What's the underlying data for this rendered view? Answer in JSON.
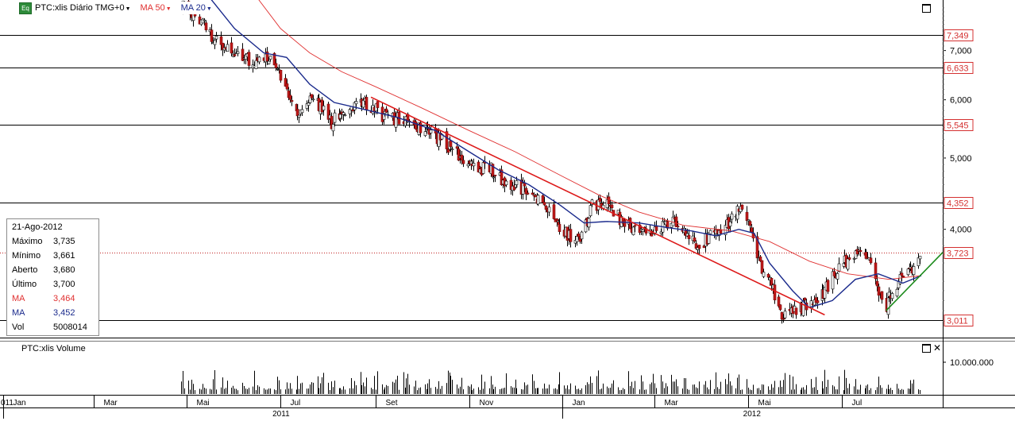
{
  "header": {
    "eq_badge": "Eq",
    "symbol_label": "PTC:xlis Diário TMG+0",
    "ma1_label": "MA 50",
    "ma2_label": "MA 20",
    "caret": "▼",
    "ma1_color": "#e03030",
    "ma2_color": "#1a2a8c"
  },
  "info_panel": {
    "date": "21-Ago-2012",
    "rows": [
      {
        "key": "Máximo",
        "value": "3,735",
        "color": "#000000"
      },
      {
        "key": "Mínimo",
        "value": "3,661",
        "color": "#000000"
      },
      {
        "key": "Aberto",
        "value": "3,680",
        "color": "#000000"
      },
      {
        "key": "Último",
        "value": "3,700",
        "color": "#000000"
      },
      {
        "key": "MA",
        "value": "3,464",
        "color": "#e03030"
      },
      {
        "key": "MA",
        "value": "3,452",
        "color": "#1a2a8c"
      },
      {
        "key": "Vol",
        "value": "5008014",
        "color": "#000000"
      }
    ]
  },
  "volume_panel": {
    "label": "PTC:xlis Volume",
    "close_icon": "✕"
  },
  "chart_data": {
    "type": "candlestick",
    "scale": "log",
    "ylim": [
      2.85,
      8.2
    ],
    "x_range": [
      "2010-12-30",
      "2012-09-05"
    ],
    "yticks": [
      {
        "value": 7.0,
        "label": "7,000"
      },
      {
        "value": 6.0,
        "label": "6,000"
      },
      {
        "value": 5.0,
        "label": "5,000"
      },
      {
        "value": 4.0,
        "label": "4,000"
      }
    ],
    "level_lines": [
      {
        "value": 7.349,
        "label": "7,349"
      },
      {
        "value": 6.633,
        "label": "6,633"
      },
      {
        "value": 5.545,
        "label": "5,545"
      },
      {
        "value": 4.352,
        "label": "4,352"
      },
      {
        "value": 3.011,
        "label": "3,011"
      }
    ],
    "last_price": {
      "value": 3.723,
      "label": "3,723"
    },
    "months": [
      {
        "date": "2011-01-01",
        "label": "Jan"
      },
      {
        "date": "2011-03-01",
        "label": "Mar"
      },
      {
        "date": "2011-05-01",
        "label": "Mai"
      },
      {
        "date": "2011-07-01",
        "label": "Jul"
      },
      {
        "date": "2011-09-01",
        "label": "Set"
      },
      {
        "date": "2011-11-01",
        "label": "Nov"
      },
      {
        "date": "2012-01-01",
        "label": "Jan"
      },
      {
        "date": "2012-03-01",
        "label": "Mar"
      },
      {
        "date": "2012-05-01",
        "label": "Mai"
      },
      {
        "date": "2012-07-01",
        "label": "Jul"
      }
    ],
    "years": [
      {
        "start": "2011-01-01",
        "end": "2011-12-31",
        "label": "2011"
      },
      {
        "start": "2012-01-01",
        "end": "2012-09-05",
        "label": "2012"
      }
    ],
    "edge_label": "011",
    "close_path": [
      [
        "2011-04-27",
        8.1
      ],
      [
        "2011-05-05",
        7.9
      ],
      [
        "2011-05-12",
        7.6
      ],
      [
        "2011-05-20",
        7.2
      ],
      [
        "2011-05-31",
        6.9
      ],
      [
        "2011-06-08",
        6.85
      ],
      [
        "2011-06-16",
        6.75
      ],
      [
        "2011-06-24",
        6.95
      ],
      [
        "2011-07-01",
        6.4
      ],
      [
        "2011-07-06",
        6.0
      ],
      [
        "2011-07-11",
        5.78
      ],
      [
        "2011-07-18",
        6.0
      ],
      [
        "2011-07-26",
        5.9
      ],
      [
        "2011-08-03",
        5.6
      ],
      [
        "2011-08-10",
        5.75
      ],
      [
        "2011-08-22",
        5.95
      ],
      [
        "2011-09-01",
        5.8
      ],
      [
        "2011-09-09",
        5.65
      ],
      [
        "2011-09-21",
        5.7
      ],
      [
        "2011-10-03",
        5.45
      ],
      [
        "2011-10-14",
        5.3
      ],
      [
        "2011-10-26",
        5.0
      ],
      [
        "2011-11-03",
        4.85
      ],
      [
        "2011-11-14",
        4.85
      ],
      [
        "2011-11-24",
        4.6
      ],
      [
        "2011-12-05",
        4.55
      ],
      [
        "2011-12-15",
        4.42
      ],
      [
        "2011-12-24",
        4.25
      ],
      [
        "2011-12-30",
        4.05
      ],
      [
        "2012-01-06",
        3.9
      ],
      [
        "2012-01-13",
        3.92
      ],
      [
        "2012-01-20",
        4.3
      ],
      [
        "2012-01-30",
        4.35
      ],
      [
        "2012-02-08",
        4.1
      ],
      [
        "2012-02-17",
        4.0
      ],
      [
        "2012-02-27",
        4.0
      ],
      [
        "2012-03-07",
        4.02
      ],
      [
        "2012-03-16",
        4.1
      ],
      [
        "2012-03-23",
        3.9
      ],
      [
        "2012-03-30",
        3.82
      ],
      [
        "2012-04-06",
        3.9
      ],
      [
        "2012-04-16",
        4.05
      ],
      [
        "2012-04-23",
        4.2
      ],
      [
        "2012-04-27",
        4.25
      ],
      [
        "2012-05-03",
        3.95
      ],
      [
        "2012-05-10",
        3.55
      ],
      [
        "2012-05-17",
        3.3
      ],
      [
        "2012-05-22",
        3.08
      ],
      [
        "2012-05-30",
        3.1
      ],
      [
        "2012-06-07",
        3.15
      ],
      [
        "2012-06-14",
        3.2
      ],
      [
        "2012-06-22",
        3.35
      ],
      [
        "2012-06-29",
        3.55
      ],
      [
        "2012-07-06",
        3.65
      ],
      [
        "2012-07-13",
        3.7
      ],
      [
        "2012-07-20",
        3.62
      ],
      [
        "2012-07-24",
        3.35
      ],
      [
        "2012-07-30",
        3.15
      ],
      [
        "2012-08-03",
        3.3
      ],
      [
        "2012-08-09",
        3.42
      ],
      [
        "2012-08-15",
        3.5
      ],
      [
        "2012-08-21",
        3.7
      ]
    ],
    "ma20_path": [
      [
        "2011-05-15",
        8.3
      ],
      [
        "2011-06-01",
        7.5
      ],
      [
        "2011-06-20",
        6.95
      ],
      [
        "2011-07-05",
        6.85
      ],
      [
        "2011-07-20",
        6.3
      ],
      [
        "2011-08-05",
        5.95
      ],
      [
        "2011-08-25",
        5.82
      ],
      [
        "2011-09-15",
        5.68
      ],
      [
        "2011-10-10",
        5.45
      ],
      [
        "2011-11-01",
        5.1
      ],
      [
        "2011-11-20",
        4.82
      ],
      [
        "2011-12-10",
        4.6
      ],
      [
        "2011-12-30",
        4.32
      ],
      [
        "2012-01-15",
        4.08
      ],
      [
        "2012-01-30",
        4.1
      ],
      [
        "2012-02-20",
        4.08
      ],
      [
        "2012-03-10",
        4.02
      ],
      [
        "2012-03-25",
        3.98
      ],
      [
        "2012-04-10",
        3.92
      ],
      [
        "2012-04-25",
        4.0
      ],
      [
        "2012-05-05",
        3.95
      ],
      [
        "2012-05-15",
        3.6
      ],
      [
        "2012-05-30",
        3.3
      ],
      [
        "2012-06-10",
        3.13
      ],
      [
        "2012-06-25",
        3.2
      ],
      [
        "2012-07-10",
        3.42
      ],
      [
        "2012-07-25",
        3.48
      ],
      [
        "2012-08-10",
        3.38
      ],
      [
        "2012-08-22",
        3.46
      ]
    ],
    "ma50_path": [
      [
        "2011-06-15",
        8.3
      ],
      [
        "2011-07-01",
        7.5
      ],
      [
        "2011-07-20",
        6.95
      ],
      [
        "2011-08-10",
        6.55
      ],
      [
        "2011-09-01",
        6.25
      ],
      [
        "2011-10-01",
        5.85
      ],
      [
        "2011-11-01",
        5.45
      ],
      [
        "2011-12-01",
        5.1
      ],
      [
        "2012-01-01",
        4.72
      ],
      [
        "2012-01-25",
        4.45
      ],
      [
        "2012-02-20",
        4.22
      ],
      [
        "2012-03-20",
        4.05
      ],
      [
        "2012-04-20",
        3.98
      ],
      [
        "2012-05-15",
        3.85
      ],
      [
        "2012-06-10",
        3.62
      ],
      [
        "2012-07-05",
        3.48
      ],
      [
        "2012-08-01",
        3.42
      ],
      [
        "2012-08-22",
        3.46
      ]
    ],
    "trendlines": [
      {
        "name": "downtrend",
        "color": "#dd1a1a",
        "from": [
          "2011-08-29",
          6.05
        ],
        "to": [
          "2012-06-20",
          3.06
        ]
      },
      {
        "name": "uptrend",
        "color": "#1a8a1a",
        "from": [
          "2012-07-30",
          3.1
        ],
        "to": [
          "2012-09-05",
          3.72
        ]
      }
    ],
    "volume": {
      "ylim": [
        0,
        13000000
      ],
      "tick": {
        "value": 10000000,
        "label": "10.000.000"
      }
    }
  }
}
